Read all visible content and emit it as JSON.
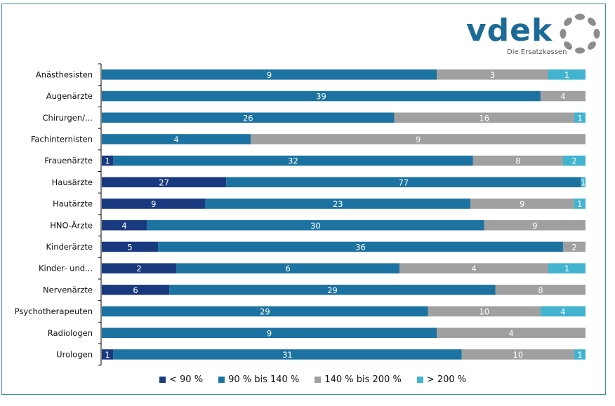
{
  "logo": {
    "name": "vdek",
    "tagline": "Die Ersatzkassen",
    "brand_color": "#1b6a97",
    "ring_color": "#8c8c8c"
  },
  "chart_data": {
    "type": "bar",
    "orientation": "horizontal",
    "stacked": "percent",
    "title": "",
    "xlabel": "",
    "ylabel": "",
    "grid": false,
    "legend_position": "bottom",
    "categories": [
      "Anästhesisten",
      "Augenärzte",
      "Chirurgen/...",
      "Fachinternisten",
      "Frauenärzte",
      "Hausärzte",
      "Hautärzte",
      "HNO-Ärzte",
      "Kinderärzte",
      "Kinder- und...",
      "Nervenärzte",
      "Psychotherapeuten",
      "Radiologen",
      "Urologen"
    ],
    "series": [
      {
        "name": "< 90 %",
        "color": "#1a3a80",
        "values": [
          0,
          0,
          0,
          0,
          1,
          27,
          9,
          4,
          5,
          2,
          6,
          0,
          0,
          1
        ]
      },
      {
        "name": "90 % bis 140 %",
        "color": "#1c73a1",
        "values": [
          9,
          39,
          26,
          4,
          32,
          77,
          23,
          30,
          36,
          6,
          29,
          29,
          9,
          31
        ]
      },
      {
        "name": "140 % bis 200 %",
        "color": "#a0a0a0",
        "values": [
          3,
          4,
          16,
          9,
          8,
          0,
          9,
          9,
          2,
          4,
          8,
          10,
          4,
          10
        ]
      },
      {
        "name": "> 200 %",
        "color": "#42b4cf",
        "values": [
          1,
          0,
          1,
          0,
          2,
          1,
          1,
          0,
          0,
          1,
          0,
          4,
          0,
          1
        ]
      }
    ]
  }
}
